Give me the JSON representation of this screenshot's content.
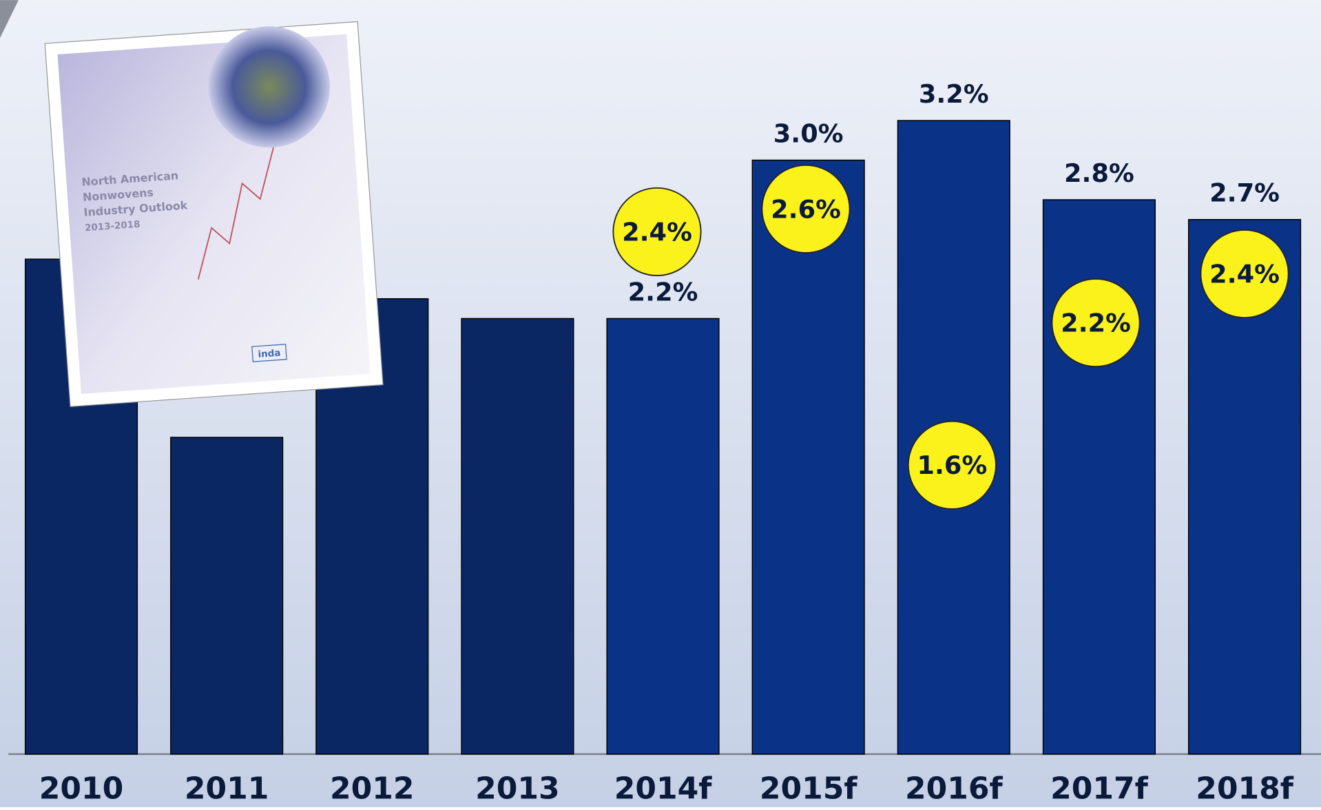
{
  "chart_data": {
    "type": "bar",
    "categories": [
      "2010",
      "2011",
      "2012",
      "2013",
      "2014f",
      "2015f",
      "2016f",
      "2017f",
      "2018f"
    ],
    "values": [
      2.5,
      1.6,
      2.3,
      2.2,
      2.2,
      3.0,
      3.2,
      2.8,
      2.7
    ],
    "value_labels": [
      null,
      null,
      null,
      null,
      "2.2%",
      "3.0%",
      "3.2%",
      "2.8%",
      "2.7%"
    ],
    "colors": [
      "#0b2763",
      "#0b2763",
      "#0b2763",
      "#0b2763",
      "#0a3388",
      "#0a3388",
      "#0a3388",
      "#0a3388",
      "#0a3388"
    ],
    "ylim": [
      0,
      3.8
    ],
    "callouts": {
      "color": "#fbf21c",
      "values": [
        null,
        null,
        null,
        null,
        2.4,
        2.6,
        1.6,
        2.2,
        2.4
      ],
      "value_labels": [
        null,
        null,
        null,
        null,
        "2.4%",
        "2.6%",
        "1.6%",
        "2.2%",
        "2.4%"
      ]
    }
  },
  "inset": {
    "title": [
      "North American",
      "Nonwovens",
      "Industry Outlook",
      "2013-2018"
    ],
    "logo": "inda"
  }
}
